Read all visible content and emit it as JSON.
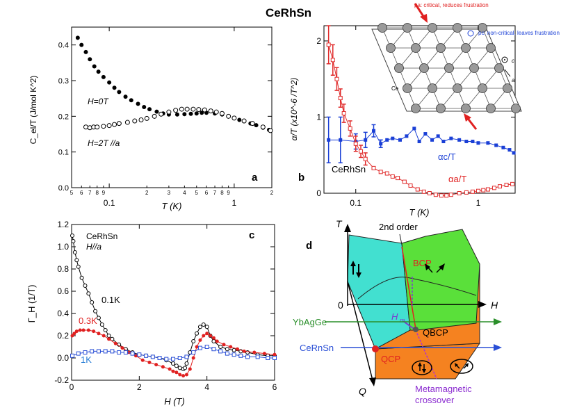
{
  "figure_title": "CeRhSn",
  "chart_data": [
    {
      "id": "a",
      "type": "scatter",
      "panel_label": "a",
      "xscale": "log",
      "xlim": [
        0.05,
        2
      ],
      "ylim": [
        0,
        0.45
      ],
      "xlabel": "T (K)",
      "ylabel": "C_el/T (J/mol K^2)",
      "xticks": [
        {
          "v": 0.1,
          "t": "0.1"
        },
        {
          "v": 1,
          "t": "1"
        }
      ],
      "xminor": [
        {
          "v": 0.05,
          "t": "5"
        },
        {
          "v": 0.06,
          "t": "6"
        },
        {
          "v": 0.07,
          "t": "7"
        },
        {
          "v": 0.08,
          "t": "8"
        },
        {
          "v": 0.09,
          "t": "9"
        },
        {
          "v": 0.2,
          "t": "2"
        },
        {
          "v": 0.3,
          "t": "3"
        },
        {
          "v": 0.4,
          "t": "4"
        },
        {
          "v": 0.5,
          "t": "5"
        },
        {
          "v": 0.6,
          "t": "6"
        },
        {
          "v": 0.7,
          "t": "7"
        },
        {
          "v": 0.8,
          "t": "8"
        },
        {
          "v": 0.9,
          "t": "9"
        },
        {
          "v": 2,
          "t": "2"
        }
      ],
      "yticks": [
        {
          "v": 0,
          "t": "0.0"
        },
        {
          "v": 0.1,
          "t": "0.1"
        },
        {
          "v": 0.2,
          "t": "0.2"
        },
        {
          "v": 0.3,
          "t": "0.3"
        },
        {
          "v": 0.4,
          "t": "0.4"
        }
      ],
      "series": [
        {
          "name": "H=0T",
          "label": "H=0T",
          "color": "#000000",
          "marker": "filled-circle",
          "x": [
            0.056,
            0.06,
            0.065,
            0.07,
            0.076,
            0.082,
            0.09,
            0.1,
            0.11,
            0.12,
            0.135,
            0.15,
            0.17,
            0.19,
            0.21,
            0.24,
            0.27,
            0.3,
            0.35,
            0.4,
            0.45,
            0.5,
            0.55,
            0.6,
            0.7,
            0.8,
            0.9,
            1.0,
            1.1,
            1.2,
            1.35,
            1.5,
            1.7,
            1.9
          ],
          "y": [
            0.42,
            0.4,
            0.38,
            0.36,
            0.34,
            0.325,
            0.31,
            0.295,
            0.28,
            0.268,
            0.255,
            0.245,
            0.235,
            0.226,
            0.22,
            0.213,
            0.208,
            0.205,
            0.205,
            0.206,
            0.207,
            0.208,
            0.21,
            0.21,
            0.208,
            0.205,
            0.2,
            0.195,
            0.19,
            0.186,
            0.18,
            0.175,
            0.168,
            0.162
          ]
        },
        {
          "name": "H=2T //a",
          "label": "H=2T //a",
          "color": "#000000",
          "marker": "open-circle",
          "x": [
            0.065,
            0.07,
            0.075,
            0.08,
            0.09,
            0.1,
            0.11,
            0.12,
            0.14,
            0.16,
            0.18,
            0.2,
            0.23,
            0.26,
            0.3,
            0.34,
            0.38,
            0.42,
            0.47,
            0.52,
            0.58,
            0.65,
            0.72,
            0.8,
            0.9,
            1.0,
            1.2,
            1.4,
            1.7,
            1.95
          ],
          "y": [
            0.17,
            0.168,
            0.17,
            0.17,
            0.172,
            0.174,
            0.177,
            0.18,
            0.183,
            0.187,
            0.19,
            0.194,
            0.2,
            0.206,
            0.212,
            0.217,
            0.22,
            0.22,
            0.22,
            0.219,
            0.218,
            0.215,
            0.212,
            0.208,
            0.2,
            0.195,
            0.187,
            0.18,
            0.17,
            0.16
          ]
        }
      ]
    },
    {
      "id": "b",
      "type": "line",
      "panel_label": "b",
      "xscale": "log",
      "xlim": [
        0.055,
        2
      ],
      "ylim": [
        0,
        2.2
      ],
      "xlabel": "T (K)",
      "ylabel": "α/T (x10^-6 /T^2)",
      "xticks": [
        {
          "v": 0.1,
          "t": "0.1"
        },
        {
          "v": 1,
          "t": "1"
        }
      ],
      "yticks": [
        {
          "v": 0,
          "t": "0"
        },
        {
          "v": 1,
          "t": "1"
        },
        {
          "v": 2,
          "t": "2"
        }
      ],
      "sample_label": "CeRhSn",
      "series": [
        {
          "name": "αc/T",
          "label": "αc/T",
          "color": "#1a3fd6",
          "marker": "filled-square",
          "x": [
            0.06,
            0.075,
            0.1,
            0.12,
            0.14,
            0.16,
            0.18,
            0.2,
            0.23,
            0.26,
            0.3,
            0.33,
            0.37,
            0.42,
            0.47,
            0.52,
            0.6,
            0.7,
            0.8,
            0.9,
            1.0,
            1.2,
            1.4,
            1.6,
            1.8,
            1.95
          ],
          "y": [
            0.7,
            0.7,
            0.68,
            0.7,
            0.82,
            0.65,
            0.7,
            0.72,
            0.7,
            0.75,
            0.85,
            0.68,
            0.78,
            0.7,
            0.75,
            0.68,
            0.72,
            0.7,
            0.68,
            0.68,
            0.66,
            0.66,
            0.63,
            0.6,
            0.57,
            0.53
          ],
          "err": [
            0.3,
            0.3,
            0.1,
            0.1,
            0.08,
            0.05,
            0,
            0,
            0,
            0,
            0,
            0,
            0,
            0,
            0,
            0,
            0,
            0,
            0,
            0,
            0,
            0,
            0,
            0,
            0,
            0
          ]
        },
        {
          "name": "αa/T",
          "label": "αa/T",
          "color": "#e02b2b",
          "marker": "open-square",
          "x": [
            0.06,
            0.065,
            0.07,
            0.075,
            0.08,
            0.09,
            0.1,
            0.11,
            0.12,
            0.14,
            0.16,
            0.18,
            0.2,
            0.22,
            0.25,
            0.28,
            0.32,
            0.36,
            0.4,
            0.45,
            0.5,
            0.55,
            0.6,
            0.7,
            0.8,
            0.9,
            1.0,
            1.1,
            1.2,
            1.35,
            1.5,
            1.7,
            1.9
          ],
          "y": [
            1.95,
            1.75,
            1.5,
            1.25,
            1.05,
            0.85,
            0.65,
            0.55,
            0.45,
            0.33,
            0.28,
            0.26,
            0.22,
            0.2,
            0.15,
            0.1,
            0.05,
            0.02,
            0.0,
            -0.02,
            -0.03,
            -0.03,
            -0.02,
            0.0,
            0.01,
            0.02,
            0.03,
            0.04,
            0.05,
            0.07,
            0.09,
            0.11,
            0.12
          ],
          "err": [
            0.25,
            0.2,
            0.15,
            0.12,
            0.12,
            0.1,
            0.1,
            0.08,
            0.08,
            0,
            0,
            0,
            0,
            0,
            0,
            0,
            0,
            0,
            0,
            0,
            0,
            0,
            0,
            0,
            0,
            0,
            0,
            0,
            0,
            0,
            0,
            0,
            0
          ]
        }
      ],
      "inset": {
        "pa_text": "pa: critical, reduces frustration",
        "pc_text": "pc: non-critical, leaves frustration",
        "c_label": "c",
        "a_label": "a",
        "ce_label": "Ce"
      }
    },
    {
      "id": "c",
      "type": "line",
      "panel_label": "c",
      "xlim": [
        0,
        6
      ],
      "ylim": [
        -0.2,
        1.2
      ],
      "xlabel": "H (T)",
      "ylabel": "Γ_H (1/T)",
      "xticks": [
        {
          "v": 0,
          "t": "0"
        },
        {
          "v": 2,
          "t": "2"
        },
        {
          "v": 4,
          "t": "4"
        },
        {
          "v": 6,
          "t": "6"
        }
      ],
      "yticks": [
        {
          "v": -0.2,
          "t": "-0.2"
        },
        {
          "v": 0,
          "t": "0.0"
        },
        {
          "v": 0.2,
          "t": "0.2"
        },
        {
          "v": 0.4,
          "t": "0.4"
        },
        {
          "v": 0.6,
          "t": "0.6"
        },
        {
          "v": 0.8,
          "t": "0.8"
        },
        {
          "v": 1.0,
          "t": "1.0"
        },
        {
          "v": 1.2,
          "t": "1.2"
        }
      ],
      "sample_label": "CeRhSn",
      "field_label": "H//a",
      "series": [
        {
          "name": "0.1K",
          "label": "0.1K",
          "color": "#000000",
          "marker": "open-circle",
          "x": [
            0.02,
            0.05,
            0.1,
            0.15,
            0.2,
            0.3,
            0.4,
            0.5,
            0.6,
            0.7,
            0.8,
            0.9,
            1.0,
            1.1,
            1.2,
            1.4,
            1.6,
            1.8,
            2.0,
            2.2,
            2.4,
            2.6,
            2.8,
            3.0,
            3.1,
            3.2,
            3.3,
            3.35,
            3.4,
            3.5,
            3.6,
            3.7,
            3.8,
            3.9,
            4.0,
            4.1,
            4.2,
            4.4,
            4.6,
            4.8,
            5.0,
            5.2,
            5.5,
            5.8,
            6.0
          ],
          "y": [
            1.1,
            1.05,
            0.95,
            0.88,
            0.82,
            0.72,
            0.65,
            0.58,
            0.5,
            0.42,
            0.36,
            0.3,
            0.25,
            0.2,
            0.17,
            0.12,
            0.08,
            0.05,
            0.03,
            0.02,
            0.01,
            0.0,
            -0.02,
            -0.05,
            -0.07,
            -0.09,
            -0.1,
            -0.09,
            -0.05,
            0.05,
            0.15,
            0.22,
            0.28,
            0.3,
            0.28,
            0.2,
            0.15,
            0.1,
            0.08,
            0.07,
            0.06,
            0.05,
            0.03,
            0.02,
            0.02
          ]
        },
        {
          "name": "0.3K",
          "label": "0.3K",
          "color": "#e02020",
          "marker": "filled-circle",
          "x": [
            0.02,
            0.08,
            0.15,
            0.25,
            0.35,
            0.5,
            0.65,
            0.8,
            0.95,
            1.1,
            1.3,
            1.5,
            1.7,
            1.9,
            2.1,
            2.3,
            2.5,
            2.7,
            2.9,
            3.0,
            3.1,
            3.2,
            3.3,
            3.4,
            3.5,
            3.6,
            3.7,
            3.8,
            3.9,
            4.0,
            4.1,
            4.2,
            4.3,
            4.5,
            4.7,
            4.9,
            5.1,
            5.4,
            5.7,
            6.0
          ],
          "y": [
            0.2,
            0.22,
            0.24,
            0.25,
            0.25,
            0.25,
            0.24,
            0.22,
            0.2,
            0.17,
            0.13,
            0.09,
            0.05,
            0.02,
            -0.02,
            -0.04,
            -0.06,
            -0.08,
            -0.1,
            -0.12,
            -0.13,
            -0.15,
            -0.16,
            -0.15,
            -0.1,
            0.0,
            0.1,
            0.16,
            0.2,
            0.22,
            0.2,
            0.18,
            0.15,
            0.12,
            0.1,
            0.08,
            0.06,
            0.05,
            0.04,
            0.03
          ]
        },
        {
          "name": "1K",
          "label": "1K",
          "color": "#2a4fd6",
          "marker": "open-square",
          "x": [
            0.02,
            0.2,
            0.4,
            0.6,
            0.8,
            1.0,
            1.2,
            1.4,
            1.6,
            1.8,
            2.0,
            2.2,
            2.4,
            2.6,
            2.8,
            3.0,
            3.2,
            3.4,
            3.6,
            3.8,
            4.0,
            4.2,
            4.4,
            4.6,
            4.8,
            5.0,
            5.2,
            5.5,
            5.8,
            6.0
          ],
          "y": [
            0.02,
            0.04,
            0.05,
            0.06,
            0.06,
            0.06,
            0.06,
            0.05,
            0.05,
            0.04,
            0.03,
            0.02,
            0.01,
            0.0,
            -0.01,
            -0.01,
            0.0,
            0.01,
            0.05,
            0.09,
            0.1,
            0.08,
            0.06,
            0.04,
            0.03,
            0.02,
            0.01,
            0.01,
            0.0,
            0.0
          ]
        }
      ]
    },
    {
      "id": "d",
      "type": "diagram",
      "panel_label": "d",
      "axis_T": "T",
      "axis_H": "H",
      "axis_Q": "Q",
      "origin": "0",
      "second_order": "2nd order",
      "bcp": "BCP",
      "hm": "H",
      "hm_sub": "m",
      "qbcp": "QBCP",
      "qcp": "QCP",
      "ybagge": "YbAgGe",
      "cernsn": "CeRnSn",
      "metamagnetic_1": "Metamagnetic",
      "metamagnetic_2": "crossover"
    }
  ]
}
